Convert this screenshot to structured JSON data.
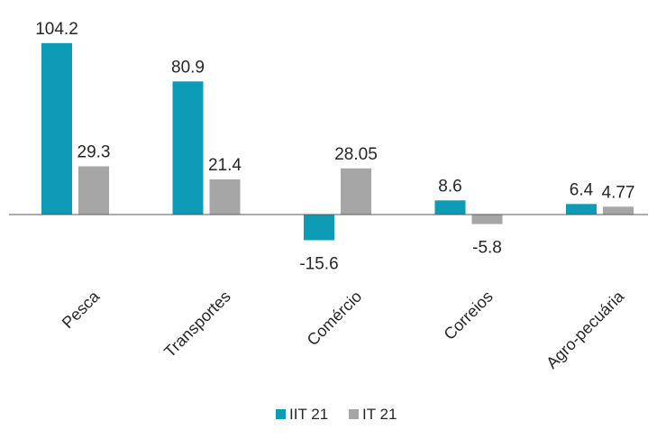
{
  "chart_data": {
    "type": "bar",
    "categories": [
      "Pesca",
      "Transportes",
      "Comércio",
      "Correios",
      "Agro-pecuária"
    ],
    "series": [
      {
        "name": "IIT 21",
        "values": [
          104.2,
          80.9,
          -15.6,
          8.6,
          6.4
        ],
        "labels": [
          "104.2",
          "80.9",
          "-15.6",
          "8.6",
          "6.4"
        ],
        "color": "#0e9bb5"
      },
      {
        "name": "IT 21",
        "values": [
          29.3,
          21.4,
          28.05,
          -5.8,
          4.77
        ],
        "labels": [
          "29.3",
          "21.4",
          "28.05",
          "-5.8",
          "4.77"
        ],
        "color": "#a6a6a6"
      }
    ],
    "title": "",
    "xlabel": "",
    "ylabel": "",
    "ylim": [
      -20,
      110
    ],
    "grid": false,
    "legend_position": "bottom-center",
    "axis_color": "#595959"
  }
}
